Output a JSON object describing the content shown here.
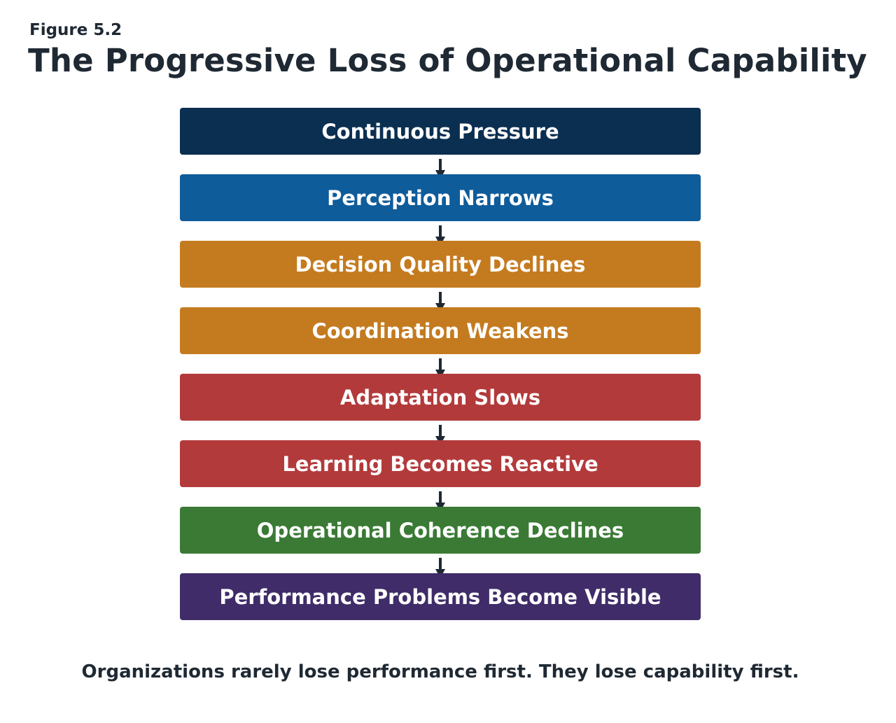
{
  "figure_label": "Figure 5.2",
  "title": "The Progressive Loss of Operational Capability",
  "steps": [
    {
      "label": "Continuous Pressure",
      "color": "#0b2f51"
    },
    {
      "label": "Perception Narrows",
      "color": "#0f5c9a"
    },
    {
      "label": "Decision Quality Declines",
      "color": "#c47b1f"
    },
    {
      "label": "Coordination Weakens",
      "color": "#c47b1f"
    },
    {
      "label": "Adaptation Slows",
      "color": "#b33a3b"
    },
    {
      "label": "Learning Becomes Reactive",
      "color": "#b33a3b"
    },
    {
      "label": "Operational Coherence Declines",
      "color": "#3a7a35"
    },
    {
      "label": "Performance Problems Become Visible",
      "color": "#3f2c68"
    }
  ],
  "arrow_color": "#1f2933",
  "caption": "Organizations rarely lose performance first. They lose capability first."
}
